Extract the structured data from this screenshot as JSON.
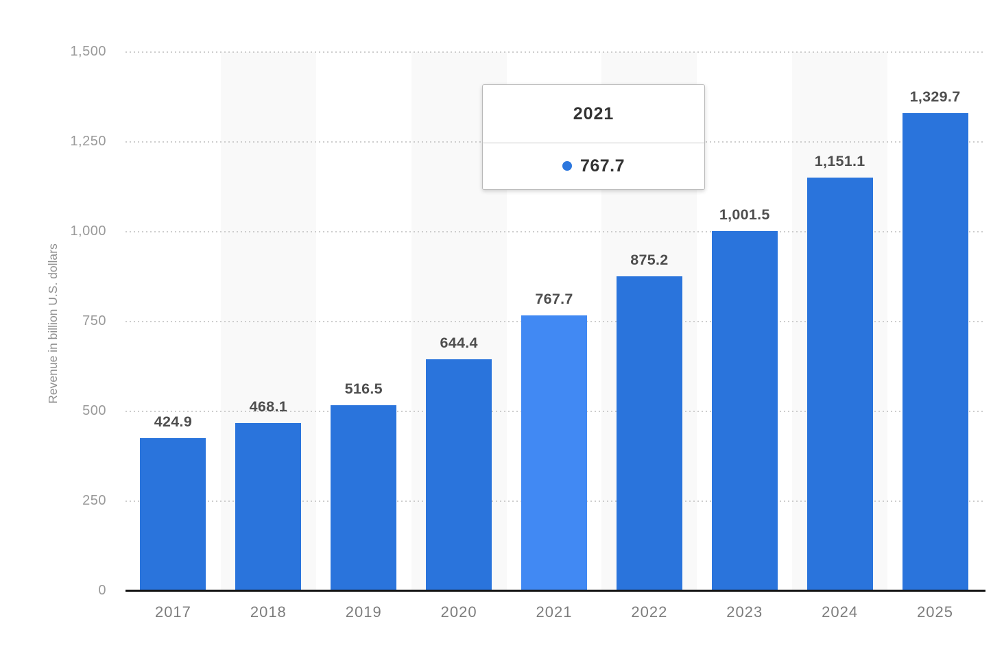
{
  "chart_data": {
    "type": "bar",
    "categories": [
      "2017",
      "2018",
      "2019",
      "2020",
      "2021",
      "2022",
      "2023",
      "2024",
      "2025"
    ],
    "values": [
      424.9,
      468.1,
      516.5,
      644.4,
      767.7,
      875.2,
      1001.5,
      1151.1,
      1329.7
    ],
    "value_labels": [
      "424.9",
      "468.1",
      "516.5",
      "644.4",
      "767.7",
      "875.2",
      "1,001.5",
      "1,151.1",
      "1,329.7"
    ],
    "title": "",
    "xlabel": "",
    "ylabel": "Revenue in billion U.S. dollars",
    "ylim": [
      0,
      1500
    ],
    "yticks": [
      0,
      250,
      500,
      750,
      1000,
      1250,
      1500
    ],
    "ytick_labels": [
      "0",
      "250",
      "500",
      "750",
      "1,000",
      "1,250",
      "1,500"
    ],
    "grid": "horizontal-dotted",
    "legend": "none",
    "highlighted_index": 4,
    "colors": {
      "bar": "#2a74dc",
      "bar_highlight": "#4189f3",
      "column_stripe": "#f9f9f9",
      "gridline": "#cdcdcd",
      "axis_line": "#141414",
      "value_label": "#4e4e4e",
      "tick_label": "#999999"
    }
  },
  "tooltip": {
    "title": "2021",
    "value": "767.7",
    "dot_color": "#2c77de"
  }
}
